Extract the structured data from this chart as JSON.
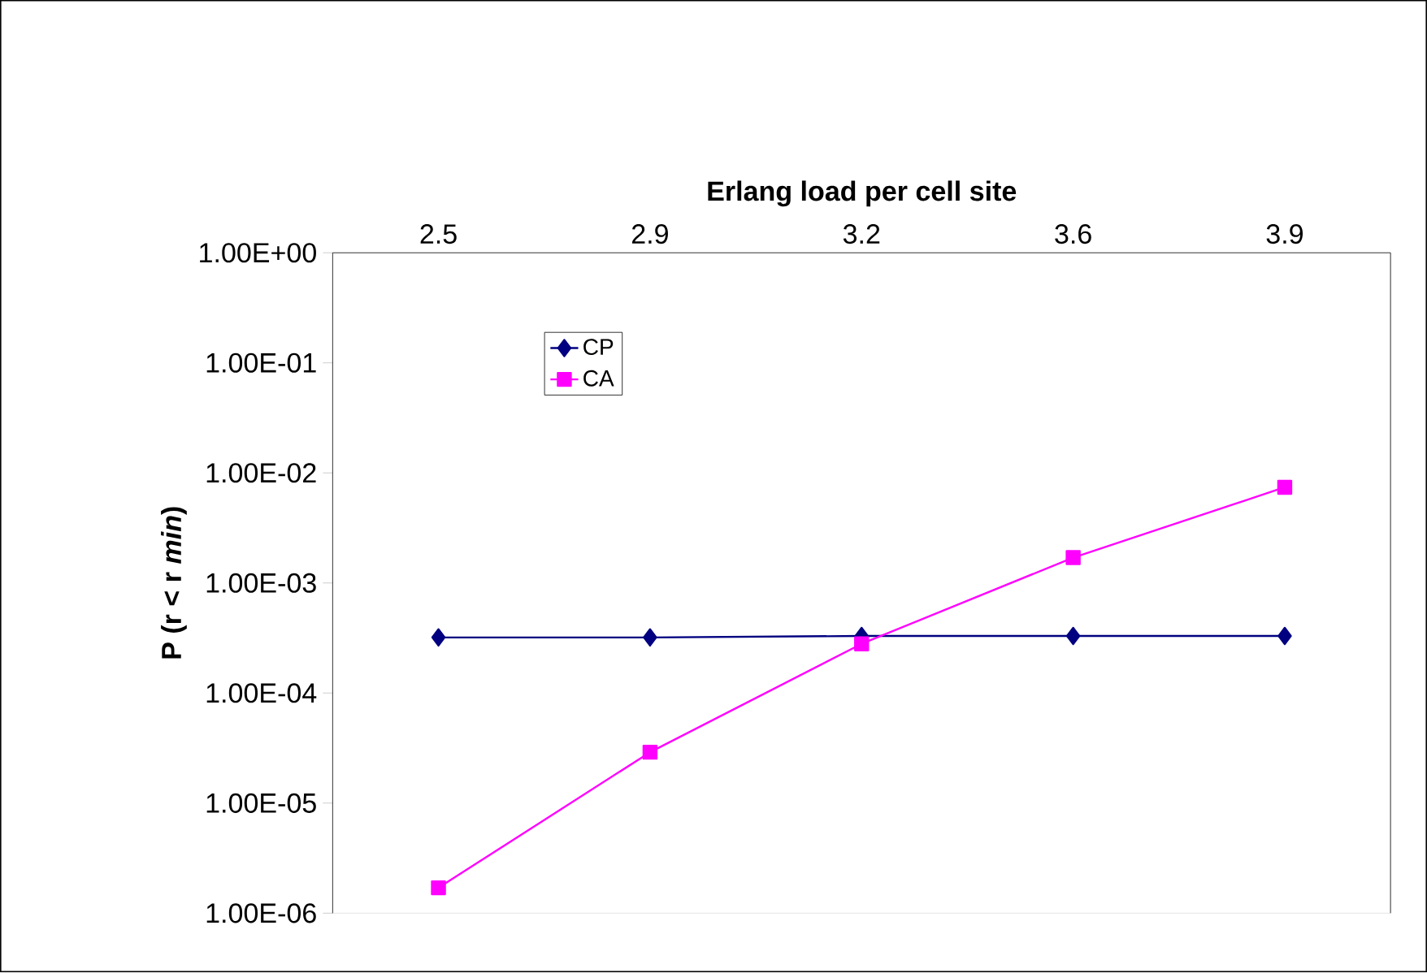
{
  "chart_data": {
    "type": "line",
    "xlabel": "Erlang load per cell site",
    "ylabel": "P (r < r *min*)",
    "categories": [
      "2.5",
      "2.9",
      "3.2",
      "3.6",
      "3.9"
    ],
    "series": [
      {
        "name": "CP",
        "color": "#000080",
        "marker": "diamond",
        "values": [
          0.00032,
          0.00032,
          0.00033,
          0.00033,
          0.00033
        ]
      },
      {
        "name": "CA",
        "color": "#ff00ff",
        "marker": "square",
        "values": [
          1.7e-06,
          2.9e-05,
          0.00028,
          0.0017,
          0.0074
        ]
      }
    ],
    "log": "y",
    "ylim": [
      1e-06,
      1
    ],
    "yticks": [
      {
        "value": 1e-06,
        "label": "1.00E-06"
      },
      {
        "value": 1e-05,
        "label": "1.00E-05"
      },
      {
        "value": 0.0001,
        "label": "1.00E-04"
      },
      {
        "value": 0.001,
        "label": "1.00E-03"
      },
      {
        "value": 0.01,
        "label": "1.00E-02"
      },
      {
        "value": 0.1,
        "label": "1.00E-01"
      },
      {
        "value": 1,
        "label": "1.00E+00"
      }
    ],
    "grid": false,
    "legend": "top left"
  }
}
